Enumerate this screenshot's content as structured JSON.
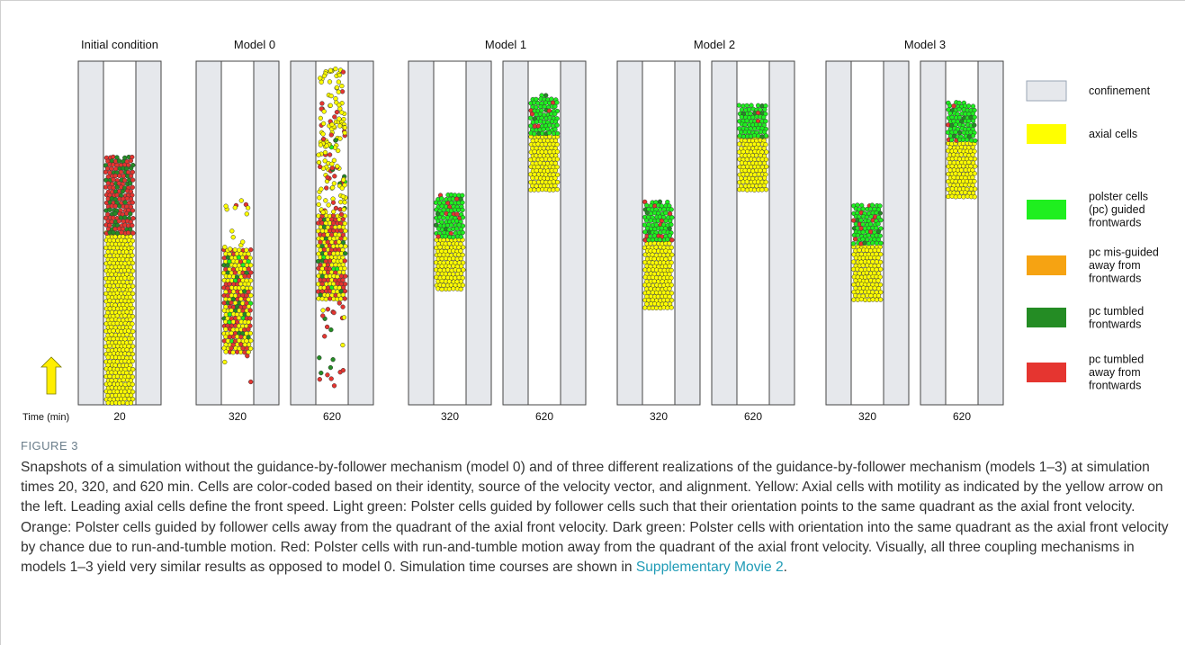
{
  "figure": {
    "column_titles": [
      "Initial condition",
      "Model 0",
      "Model 1",
      "Model 2",
      "Model 3"
    ],
    "time_label": "Time (min)",
    "panels": [
      {
        "group": "Initial condition",
        "time": "20",
        "axial_top_frac": 0.5,
        "axial_bottom_frac": 1.0,
        "polster_top_frac": 0.28,
        "polster_bottom_frac": 0.5,
        "mix": [
          0,
          0,
          0.4,
          0.6
        ],
        "scatter_above": 0,
        "scatter_below": 0
      },
      {
        "group": "Model 0",
        "time": "320",
        "axial_top_frac": 0.55,
        "axial_bottom_frac": 0.85,
        "polster_top_frac": 0.55,
        "polster_bottom_frac": 0.8,
        "mix": [
          0.05,
          0,
          0.2,
          0.75
        ],
        "scatter_above": 14,
        "scatter_below": 3,
        "mixed": true
      },
      {
        "group": "Model 0",
        "time": "620",
        "axial_top_frac": 0.45,
        "axial_bottom_frac": 0.7,
        "polster_top_frac": 0.45,
        "polster_bottom_frac": 0.7,
        "mix": [
          0.05,
          0,
          0.2,
          0.75
        ],
        "scatter_above": 150,
        "scatter_below": 24,
        "mixed": true
      },
      {
        "group": "Model 1",
        "time": "320",
        "axial_top_frac": 0.52,
        "axial_bottom_frac": 0.67,
        "polster_top_frac": 0.39,
        "polster_bottom_frac": 0.52,
        "mix": [
          0.85,
          0,
          0.08,
          0.07
        ],
        "scatter_above": 0,
        "scatter_below": 0
      },
      {
        "group": "Model 1",
        "time": "620",
        "axial_top_frac": 0.22,
        "axial_bottom_frac": 0.38,
        "polster_top_frac": 0.1,
        "polster_bottom_frac": 0.22,
        "mix": [
          0.85,
          0,
          0.08,
          0.07
        ],
        "scatter_above": 0,
        "scatter_below": 0
      },
      {
        "group": "Model 2",
        "time": "320",
        "axial_top_frac": 0.52,
        "axial_bottom_frac": 0.72,
        "polster_top_frac": 0.41,
        "polster_bottom_frac": 0.52,
        "mix": [
          0.85,
          0,
          0.08,
          0.07
        ],
        "scatter_above": 0,
        "scatter_below": 0
      },
      {
        "group": "Model 2",
        "time": "620",
        "axial_top_frac": 0.22,
        "axial_bottom_frac": 0.38,
        "polster_top_frac": 0.13,
        "polster_bottom_frac": 0.22,
        "mix": [
          0.85,
          0,
          0.08,
          0.07
        ],
        "scatter_above": 0,
        "scatter_below": 0
      },
      {
        "group": "Model 3",
        "time": "320",
        "axial_top_frac": 0.54,
        "axial_bottom_frac": 0.7,
        "polster_top_frac": 0.42,
        "polster_bottom_frac": 0.54,
        "mix": [
          0.85,
          0,
          0.08,
          0.07
        ],
        "scatter_above": 0,
        "scatter_below": 0
      },
      {
        "group": "Model 3",
        "time": "620",
        "axial_top_frac": 0.24,
        "axial_bottom_frac": 0.4,
        "polster_top_frac": 0.12,
        "polster_bottom_frac": 0.24,
        "mix": [
          0.85,
          0,
          0.08,
          0.07
        ],
        "scatter_above": 0,
        "scatter_below": 0
      }
    ],
    "legend": [
      {
        "label": "confinement",
        "color": "#e6e8ec"
      },
      {
        "label": "axial cells",
        "color": "#ffff00"
      },
      {
        "label": "polster cells\n(pc) guided\nfrontwards",
        "color": "#1fef1f"
      },
      {
        "label": "pc mis-guided\naway from\nfrontwards",
        "color": "#f6a312"
      },
      {
        "label": "pc tumbled\nfrontwards",
        "color": "#248c24"
      },
      {
        "label": "pc tumbled\naway from\nfrontwards",
        "color": "#e53530"
      }
    ],
    "colors": {
      "confinement": "#e6e8ec",
      "axial": "#ffff00",
      "pc_guided": "#1fef1f",
      "pc_misguided": "#f6a312",
      "pc_tumbled_front": "#248c24",
      "pc_tumbled_away": "#e53530",
      "arrow": "#ffee00"
    },
    "arrow_icon": "up-arrow-icon"
  },
  "caption": {
    "label": "FIGURE 3",
    "text": "Snapshots of a simulation without the guidance-by-follower mechanism (model 0) and of three different realizations of the guidance-by-follower mechanism (models 1–3) at simulation times 20, 320, and 620 min. Cells are color-coded based on their identity, source of the velocity vector, and alignment. Yellow: Axial cells with motility as indicated by the yellow arrow on the left. Leading axial cells define the front speed. Light green: Polster cells guided by follower cells such that their orientation points to the same quadrant as the axial front velocity. Orange: Polster cells guided by follower cells away from the quadrant of the axial front velocity. Dark green: Polster cells with orientation into the same quadrant as the axial front velocity by chance due to run-and-tumble motion. Red: Polster cells with run-and-tumble motion away from the quadrant of the axial front velocity. Visually, all three coupling mechanisms in models 1–3 yield very similar results as opposed to model 0. Simulation time courses are shown in ",
    "link": "Supplementary Movie 2",
    "tail": "."
  }
}
